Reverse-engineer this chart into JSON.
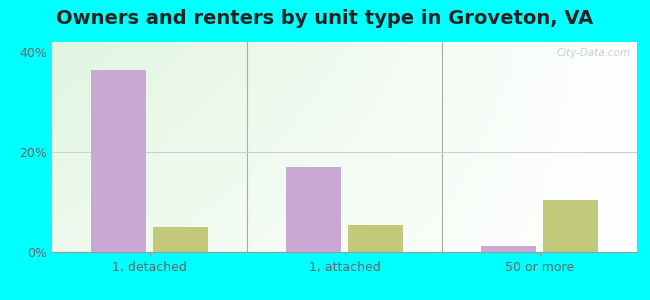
{
  "title": "Owners and renters by unit type in Groveton, VA",
  "categories": [
    "1, detached",
    "1, attached",
    "50 or more"
  ],
  "owner_values": [
    36.5,
    17.0,
    1.2
  ],
  "renter_values": [
    5.0,
    5.5,
    10.5
  ],
  "owner_color": "#c9a8d4",
  "renter_color": "#c2c97a",
  "ylim": [
    0,
    42
  ],
  "yticks": [
    0,
    20,
    40
  ],
  "ytick_labels": [
    "0%",
    "20%",
    "40%"
  ],
  "bar_width": 0.28,
  "outer_background": "#00ffff",
  "title_fontsize": 14,
  "axis_tick_fontsize": 9,
  "legend_fontsize": 9,
  "watermark": "City-Data.com",
  "bg_left_color": "#cce8cc",
  "bg_right_color": "#ffffff"
}
